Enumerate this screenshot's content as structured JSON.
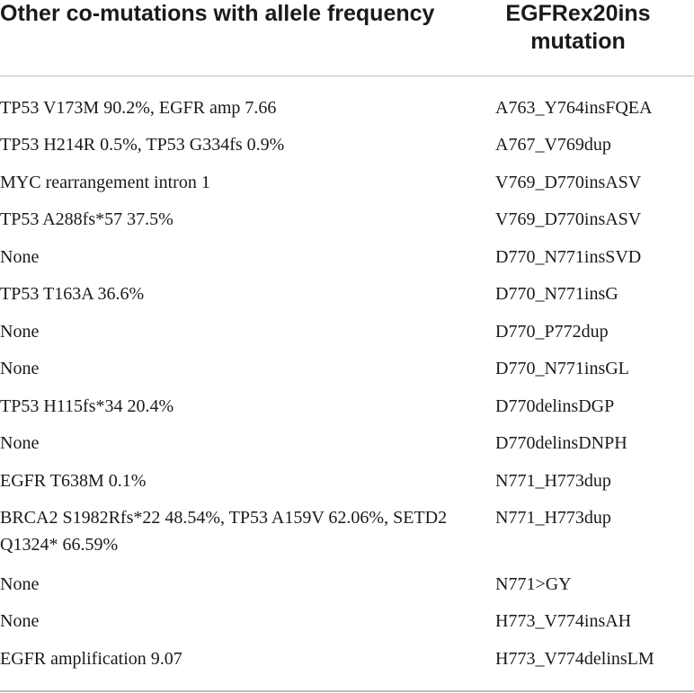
{
  "header": {
    "col1": "Other co-mutations with allele frequency",
    "col2": "EGFRex20ins mutation"
  },
  "rows": [
    {
      "comutation": "TP53 V173M 90.2%, EGFR amp 7.66",
      "mutation": "A763_Y764insFQEA"
    },
    {
      "comutation": "TP53 H214R 0.5%, TP53 G334fs 0.9%",
      "mutation": "A767_V769dup"
    },
    {
      "comutation": "MYC rearrangement intron 1",
      "mutation": "V769_D770insASV"
    },
    {
      "comutation": "TP53 A288fs*57 37.5%",
      "mutation": "V769_D770insASV"
    },
    {
      "comutation": "None",
      "mutation": "D770_N771insSVD"
    },
    {
      "comutation": "TP53 T163A 36.6%",
      "mutation": "D770_N771insG"
    },
    {
      "comutation": "None",
      "mutation": "D770_P772dup"
    },
    {
      "comutation": "None",
      "mutation": "D770_N771insGL"
    },
    {
      "comutation": "TP53 H115fs*34 20.4%",
      "mutation": "D770delinsDGP"
    },
    {
      "comutation": "None",
      "mutation": "D770delinsDNPH"
    },
    {
      "comutation": "EGFR T638M 0.1%",
      "mutation": "N771_H773dup"
    },
    {
      "comutation": "BRCA2 S1982Rfs*22 48.54%, TP53 A159V 62.06%, SETD2 Q1324* 66.59%",
      "mutation": "N771_H773dup"
    },
    {
      "comutation": "None",
      "mutation": "N771>GY"
    },
    {
      "comutation": "None",
      "mutation": "H773_V774insAH"
    },
    {
      "comutation": "EGFR amplification 9.07",
      "mutation": "H773_V774delinsLM"
    }
  ]
}
